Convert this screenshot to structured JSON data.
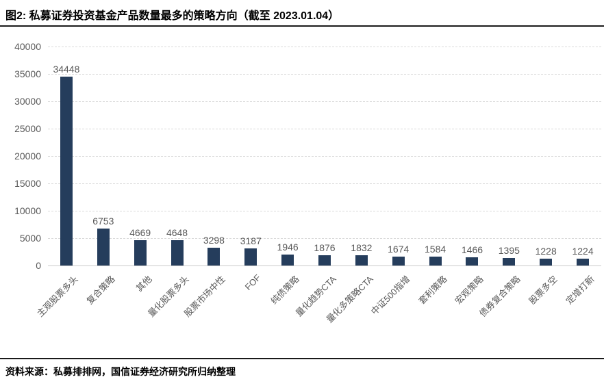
{
  "header": {
    "title": "图2: 私募证券投资基金产品数量最多的策略方向（截至 2023.01.04）"
  },
  "footer": {
    "source": "资料来源：私募排排网，国信证券经济研究所归纳整理"
  },
  "chart_data": {
    "type": "bar",
    "title": "图2: 私募证券投资基金产品数量最多的策略方向（截至 2023.01.04）",
    "categories": [
      "主观股票多头",
      "复合策略",
      "其他",
      "量化股票多头",
      "股票市场中性",
      "FOF",
      "纯债策略",
      "量化趋势CTA",
      "量化多策略CTA",
      "中证500指增",
      "套利策略",
      "宏观策略",
      "债券复合策略",
      "股票多空",
      "定增打新"
    ],
    "values": [
      34448,
      6753,
      4669,
      4648,
      3298,
      3187,
      1946,
      1876,
      1832,
      1674,
      1584,
      1466,
      1395,
      1228,
      1224
    ],
    "xlabel": "",
    "ylabel": "",
    "ylim": [
      0,
      40000
    ],
    "ytick_step": 5000,
    "yticks": [
      0,
      5000,
      10000,
      15000,
      20000,
      25000,
      30000,
      35000,
      40000
    ],
    "grid": "horizontal-dashed",
    "legend": "none",
    "data_labels": true,
    "bar_color": "#253d5c",
    "label_color": "#595959",
    "gridline_color": "#d9d9d9"
  }
}
